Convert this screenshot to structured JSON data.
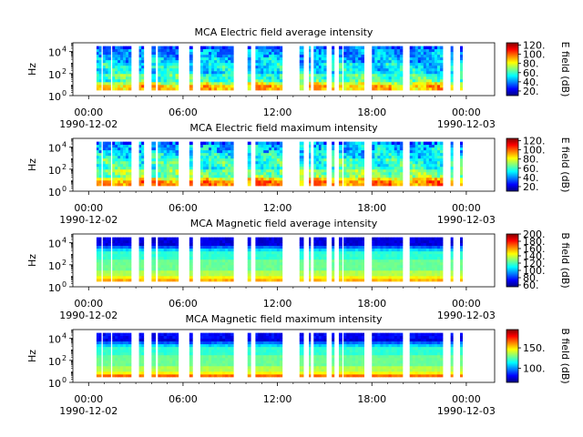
{
  "chart_data": [
    {
      "type": "heatmap",
      "title": "MCA  Electric field average intensity",
      "ylabel": "Hz",
      "y_scale": "log",
      "y_ticks": [
        {
          "base": "10",
          "exp": "0"
        },
        {
          "base": "10",
          "exp": "2"
        },
        {
          "base": "10",
          "exp": "4"
        }
      ],
      "x_ticks": [
        "00:00",
        "06:00",
        "12:00",
        "18:00",
        "00:00"
      ],
      "x_tick_hours": [
        0,
        6,
        12,
        18,
        24
      ],
      "x_date_left": "1990-12-02",
      "x_date_right": "1990-12-03",
      "colorbar_label": "E field (dB)",
      "colorbar_ticks": [
        "20.",
        "40.",
        "60.",
        "80.",
        "100.",
        "120."
      ],
      "colorbar_values": [
        20,
        40,
        60,
        80,
        100,
        120
      ],
      "clim": [
        10,
        125
      ],
      "field": "electric",
      "mode": "average"
    },
    {
      "type": "heatmap",
      "title": "MCA  Electric field maximum intensity",
      "ylabel": "Hz",
      "y_scale": "log",
      "y_ticks": [
        {
          "base": "10",
          "exp": "0"
        },
        {
          "base": "10",
          "exp": "2"
        },
        {
          "base": "10",
          "exp": "4"
        }
      ],
      "x_ticks": [
        "00:00",
        "06:00",
        "12:00",
        "18:00",
        "00:00"
      ],
      "x_tick_hours": [
        0,
        6,
        12,
        18,
        24
      ],
      "x_date_left": "1990-12-02",
      "x_date_right": "1990-12-03",
      "colorbar_label": "E field (dB)",
      "colorbar_ticks": [
        "20.",
        "40.",
        "60.",
        "80.",
        "100.",
        "120."
      ],
      "colorbar_values": [
        20,
        40,
        60,
        80,
        100,
        120
      ],
      "clim": [
        10,
        125
      ],
      "field": "electric",
      "mode": "maximum"
    },
    {
      "type": "heatmap",
      "title": "MCA  Magnetic field average intensity",
      "ylabel": "Hz",
      "y_scale": "log",
      "y_ticks": [
        {
          "base": "10",
          "exp": "0"
        },
        {
          "base": "10",
          "exp": "2"
        },
        {
          "base": "10",
          "exp": "4"
        }
      ],
      "x_ticks": [
        "00:00",
        "06:00",
        "12:00",
        "18:00",
        "00:00"
      ],
      "x_tick_hours": [
        0,
        6,
        12,
        18,
        24
      ],
      "x_date_left": "1990-12-02",
      "x_date_right": "1990-12-03",
      "colorbar_label": "B field (dB)",
      "colorbar_ticks": [
        "60.",
        "80.",
        "100.",
        "120.",
        "140.",
        "160.",
        "180.",
        "200."
      ],
      "colorbar_values": [
        60,
        80,
        100,
        120,
        140,
        160,
        180,
        200
      ],
      "clim": [
        55,
        200
      ],
      "field": "magnetic",
      "mode": "average"
    },
    {
      "type": "heatmap",
      "title": "MCA  Magnetic field maximum intensity",
      "ylabel": "Hz",
      "y_scale": "log",
      "y_ticks": [
        {
          "base": "10",
          "exp": "0"
        },
        {
          "base": "10",
          "exp": "2"
        },
        {
          "base": "10",
          "exp": "4"
        }
      ],
      "x_ticks": [
        "00:00",
        "06:00",
        "12:00",
        "18:00",
        "00:00"
      ],
      "x_tick_hours": [
        0,
        6,
        12,
        18,
        24
      ],
      "x_date_left": "1990-12-02",
      "x_date_right": "1990-12-03",
      "colorbar_label": "B field (dB)",
      "colorbar_ticks": [
        "100.",
        "150."
      ],
      "colorbar_values": [
        100,
        150
      ],
      "clim": [
        65,
        195
      ],
      "field": "magnetic",
      "mode": "maximum"
    }
  ],
  "data_segments_hours": [
    [
      0.5,
      0.8
    ],
    [
      0.9,
      1.4
    ],
    [
      1.5,
      2.7
    ],
    [
      3.2,
      3.5
    ],
    [
      4.0,
      4.25
    ],
    [
      4.4,
      5.7
    ],
    [
      6.4,
      6.6
    ],
    [
      7.1,
      9.2
    ],
    [
      10.1,
      10.3
    ],
    [
      10.6,
      12.3
    ],
    [
      13.4,
      13.65
    ],
    [
      14.0,
      14.1
    ],
    [
      14.3,
      15.1
    ],
    [
      15.45,
      15.6
    ],
    [
      15.9,
      16.1
    ],
    [
      16.2,
      17.5
    ],
    [
      18.0,
      19.95
    ],
    [
      20.4,
      22.5
    ],
    [
      23.0,
      23.15
    ],
    [
      23.6,
      23.75
    ]
  ],
  "x_range_hours": [
    -1,
    25.8
  ],
  "y_range_exp": [
    0,
    4.8
  ],
  "data_y_range_exp": [
    0.5,
    4.5
  ]
}
